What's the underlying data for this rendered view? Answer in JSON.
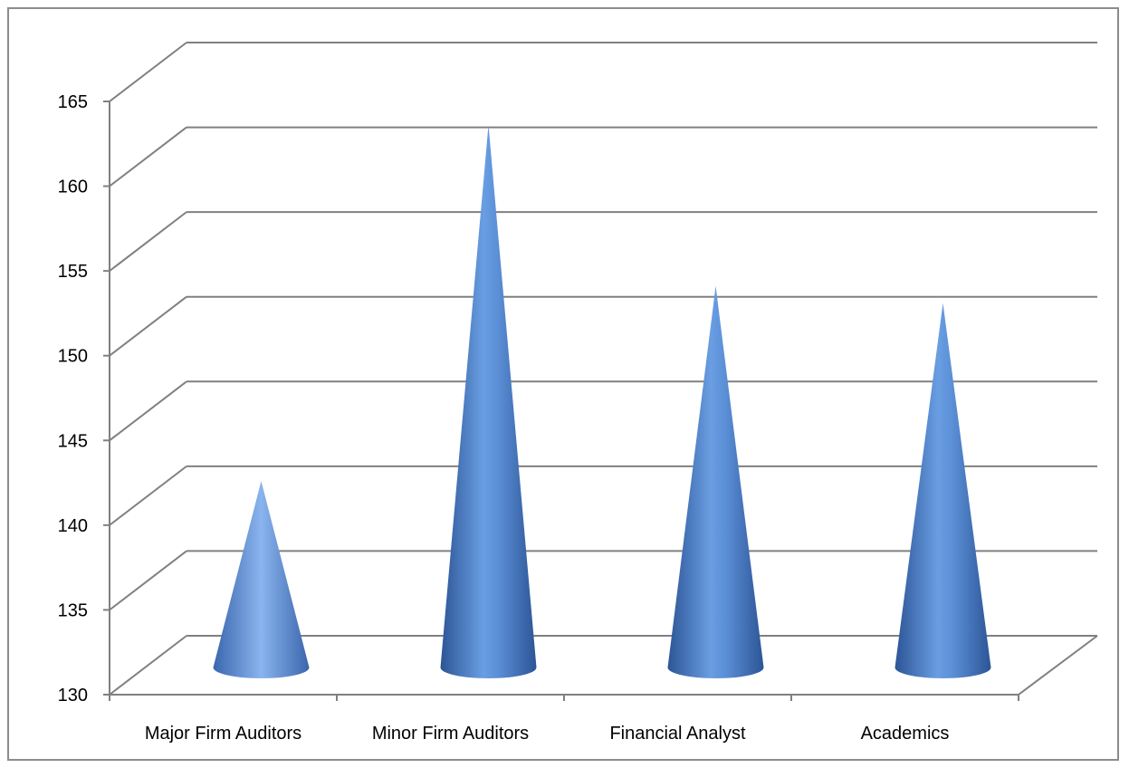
{
  "chart_data": {
    "type": "bar",
    "bar_shape": "cone",
    "categories": [
      "Major Firm Auditors",
      "Minor Firm Auditors",
      "Financial Analyst",
      "Academics"
    ],
    "values": [
      141,
      162,
      152.5,
      151.5
    ],
    "ylim": [
      130,
      165
    ],
    "yticks": [
      "130",
      "135",
      "140",
      "145",
      "150",
      "155",
      "160",
      "165"
    ],
    "grid": true,
    "legend": "none",
    "title": "",
    "xlabel": "",
    "ylabel": ""
  },
  "colors": {
    "cone_dark": "#2c5596",
    "cone_mid": "#5b8fd6",
    "cone_light": "#8ab4ee",
    "axis": "#808080",
    "grid": "#808080"
  }
}
